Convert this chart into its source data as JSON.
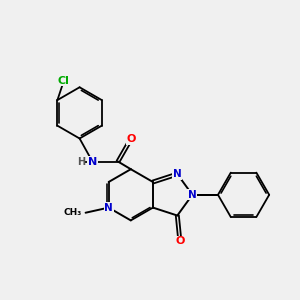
{
  "background_color": "#f0f0f0",
  "bond_color": "#000000",
  "atom_colors": {
    "N": "#0000cd",
    "O": "#ff0000",
    "Cl": "#00aa00",
    "H": "#555555",
    "C": "#000000"
  },
  "figsize": [
    3.0,
    3.0
  ],
  "dpi": 100
}
